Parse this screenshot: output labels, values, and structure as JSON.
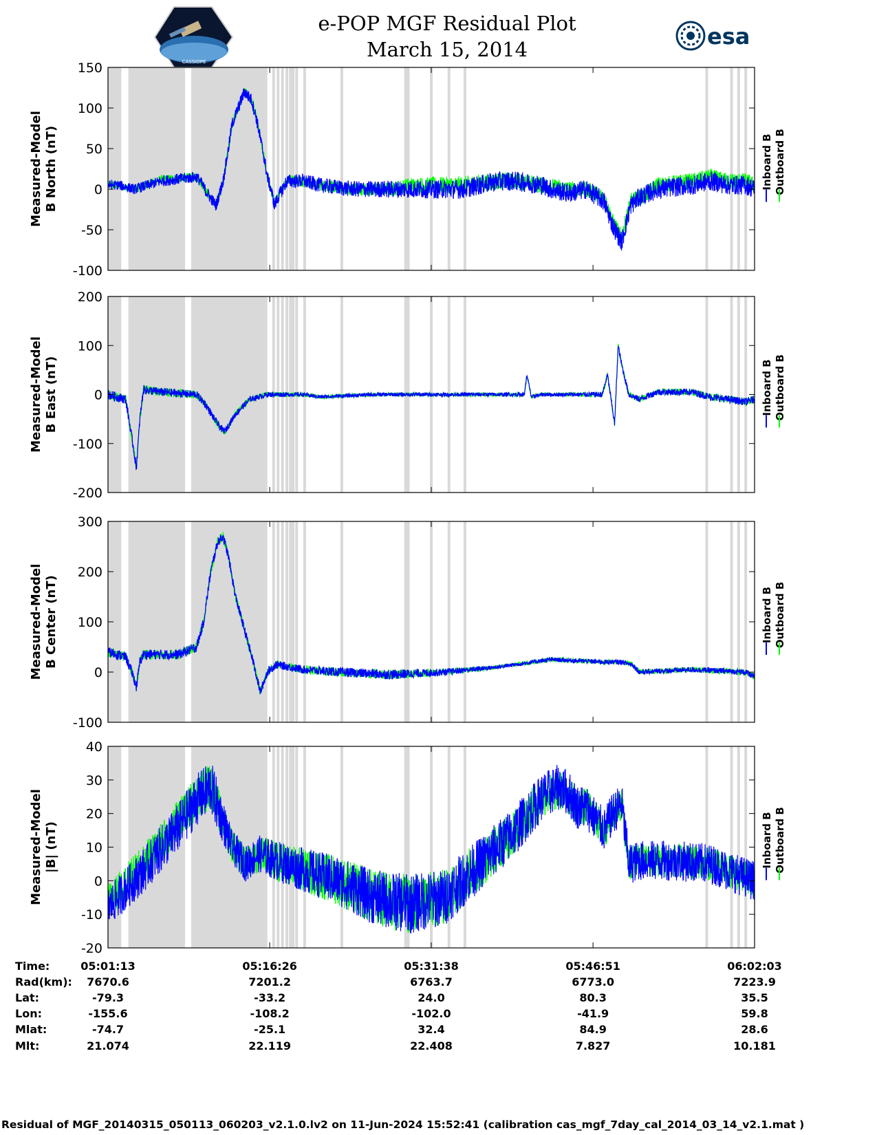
{
  "title": {
    "line1": "e-POP MGF Residual Plot",
    "line2": "March 15, 2014"
  },
  "logos": {
    "left": "cassiope-mission-patch",
    "left_text": "CASSIOPE",
    "right": "esa-logo",
    "right_text": "esa"
  },
  "colors": {
    "inboard": "#0000ff",
    "outboard": "#00ff00",
    "shade": "#d9d9d9"
  },
  "legend": {
    "inboard": "Inboard B",
    "outboard": "Outboard B"
  },
  "time_axis": {
    "start_sec": 0,
    "end_sec": 3650,
    "tick_sec": [
      0,
      913,
      1825,
      2738,
      3650
    ]
  },
  "shaded_regions_sec": [
    [
      0,
      75
    ],
    [
      115,
      435
    ],
    [
      470,
      900
    ]
  ],
  "gap_lines_sec": [
    935,
    960,
    985,
    1010,
    1030,
    1045,
    1065,
    1110,
    1320,
    1680,
    1695,
    1825,
    1925,
    2015,
    3380,
    3520,
    3560,
    3600
  ],
  "chart_data": [
    {
      "type": "line",
      "name": "north",
      "ylabel": [
        "Measured-Model",
        "B North (nT)"
      ],
      "ylim": [
        -100,
        150
      ],
      "yticks": [
        "150",
        "100",
        "50",
        "0",
        "-50",
        "-100"
      ],
      "series": [
        {
          "name": "Outboard B",
          "amp": [
            [
              0,
              5
            ],
            [
              900,
              6
            ],
            [
              1400,
              8
            ],
            [
              2000,
              11
            ],
            [
              2700,
              10
            ],
            [
              3100,
              10
            ],
            [
              3650,
              10
            ]
          ],
          "x": [
            0,
            60,
            150,
            300,
            500,
            520,
            560,
            610,
            650,
            680,
            700,
            770,
            810,
            840,
            880,
            900,
            920,
            940,
            960,
            1010,
            1100,
            1200,
            1300,
            1400,
            1500,
            1600,
            1700,
            1800,
            2000,
            2200,
            2300,
            2450,
            2500,
            2600,
            2700,
            2800,
            2850,
            2900,
            2950,
            3000,
            3050,
            3100,
            3300,
            3400,
            3500,
            3600,
            3650
          ],
          "y": [
            5,
            5,
            0,
            12,
            15,
            10,
            -5,
            -20,
            10,
            50,
            80,
            120,
            110,
            85,
            40,
            15,
            0,
            -18,
            -10,
            12,
            10,
            5,
            2,
            0,
            0,
            0,
            5,
            5,
            5,
            10,
            10,
            5,
            3,
            0,
            0,
            -10,
            -40,
            -60,
            -15,
            -10,
            -5,
            5,
            10,
            15,
            10,
            10,
            5
          ]
        },
        {
          "name": "Inboard B",
          "amp": [
            [
              0,
              6
            ],
            [
              900,
              8
            ],
            [
              1400,
              10
            ],
            [
              2000,
              12
            ],
            [
              2700,
              12
            ],
            [
              3100,
              12
            ],
            [
              3650,
              12
            ]
          ],
          "x": [
            0,
            60,
            150,
            300,
            500,
            520,
            560,
            610,
            650,
            680,
            700,
            770,
            810,
            840,
            880,
            900,
            920,
            940,
            960,
            1010,
            1100,
            1200,
            1300,
            1400,
            1500,
            1600,
            1700,
            1800,
            2000,
            2200,
            2300,
            2450,
            2500,
            2600,
            2700,
            2800,
            2850,
            2900,
            2950,
            3000,
            3050,
            3100,
            3300,
            3400,
            3500,
            3600,
            3650
          ],
          "y": [
            5,
            5,
            0,
            10,
            15,
            10,
            -5,
            -20,
            10,
            50,
            80,
            120,
            110,
            85,
            40,
            15,
            0,
            -20,
            -10,
            10,
            10,
            5,
            2,
            0,
            0,
            0,
            0,
            0,
            0,
            10,
            10,
            5,
            0,
            -5,
            0,
            -15,
            -45,
            -65,
            -20,
            -10,
            -5,
            0,
            5,
            10,
            5,
            5,
            0
          ]
        }
      ]
    },
    {
      "type": "line",
      "name": "east",
      "ylabel": [
        "Measured-Model",
        "B East (nT)"
      ],
      "ylim": [
        -200,
        200
      ],
      "yticks": [
        "200",
        "100",
        "0",
        "-100",
        "-200"
      ],
      "series": [
        {
          "name": "Outboard B",
          "amp": [
            [
              0,
              10
            ],
            [
              500,
              8
            ],
            [
              1100,
              4
            ],
            [
              2600,
              4
            ],
            [
              2800,
              6
            ],
            [
              3650,
              8
            ]
          ],
          "x": [
            0,
            100,
            140,
            160,
            180,
            200,
            300,
            500,
            550,
            600,
            640,
            660,
            720,
            800,
            900,
            1100,
            1200,
            1500,
            1800,
            2100,
            2350,
            2365,
            2390,
            2450,
            2700,
            2790,
            2820,
            2860,
            2880,
            2900,
            2940,
            3000,
            3100,
            3300,
            3400,
            3500,
            3600,
            3650
          ],
          "y": [
            0,
            -10,
            -100,
            -150,
            -50,
            10,
            5,
            0,
            -20,
            -50,
            -70,
            -75,
            -40,
            -10,
            0,
            0,
            -5,
            0,
            0,
            0,
            0,
            40,
            -5,
            0,
            0,
            0,
            40,
            -60,
            100,
            60,
            0,
            -10,
            5,
            5,
            -5,
            -10,
            -15,
            -10
          ]
        },
        {
          "name": "Inboard B",
          "amp": [
            [
              0,
              10
            ],
            [
              500,
              8
            ],
            [
              1100,
              4
            ],
            [
              2600,
              4
            ],
            [
              2800,
              6
            ],
            [
              3650,
              8
            ]
          ],
          "x": [
            0,
            100,
            140,
            160,
            180,
            200,
            300,
            500,
            550,
            600,
            640,
            660,
            720,
            800,
            900,
            1100,
            1200,
            1500,
            1800,
            2100,
            2350,
            2365,
            2390,
            2450,
            2700,
            2790,
            2820,
            2860,
            2880,
            2900,
            2940,
            3000,
            3100,
            3300,
            3400,
            3500,
            3600,
            3650
          ],
          "y": [
            0,
            -10,
            -100,
            -150,
            -50,
            10,
            5,
            0,
            -20,
            -50,
            -70,
            -75,
            -40,
            -10,
            0,
            0,
            -5,
            0,
            0,
            0,
            0,
            40,
            -5,
            0,
            0,
            0,
            40,
            -60,
            100,
            60,
            0,
            -10,
            5,
            5,
            -5,
            -10,
            -15,
            -10
          ]
        }
      ]
    },
    {
      "type": "line",
      "name": "center",
      "ylabel": [
        "Measured-Model",
        "B Center (nT)"
      ],
      "ylim": [
        -100,
        300
      ],
      "yticks": [
        "300",
        "200",
        "100",
        "0",
        "-100"
      ],
      "series": [
        {
          "name": "Outboard B",
          "amp": [
            [
              0,
              10
            ],
            [
              500,
              10
            ],
            [
              1000,
              8
            ],
            [
              1600,
              10
            ],
            [
              2200,
              4
            ],
            [
              2900,
              5
            ],
            [
              3650,
              6
            ]
          ],
          "x": [
            0,
            100,
            140,
            160,
            180,
            200,
            300,
            400,
            500,
            540,
            580,
            620,
            650,
            680,
            720,
            820,
            860,
            900,
            950,
            1100,
            1300,
            1600,
            1900,
            2200,
            2500,
            2800,
            2900,
            2960,
            3000,
            3300,
            3600,
            3650
          ],
          "y": [
            40,
            30,
            -5,
            -30,
            20,
            35,
            35,
            35,
            50,
            100,
            200,
            260,
            270,
            230,
            150,
            20,
            -40,
            0,
            15,
            5,
            0,
            -5,
            0,
            10,
            25,
            20,
            20,
            15,
            0,
            5,
            0,
            -10
          ]
        },
        {
          "name": "Inboard B",
          "amp": [
            [
              0,
              10
            ],
            [
              500,
              10
            ],
            [
              1000,
              8
            ],
            [
              1600,
              10
            ],
            [
              2200,
              4
            ],
            [
              2900,
              5
            ],
            [
              3650,
              6
            ]
          ],
          "x": [
            0,
            100,
            140,
            160,
            180,
            200,
            300,
            400,
            500,
            540,
            580,
            620,
            650,
            680,
            720,
            820,
            860,
            900,
            950,
            1100,
            1300,
            1600,
            1900,
            2200,
            2500,
            2800,
            2900,
            2960,
            3000,
            3300,
            3600,
            3650
          ],
          "y": [
            40,
            30,
            -5,
            -30,
            20,
            35,
            35,
            35,
            50,
            100,
            200,
            260,
            270,
            230,
            150,
            20,
            -40,
            0,
            15,
            5,
            0,
            -5,
            0,
            10,
            25,
            20,
            20,
            15,
            0,
            5,
            0,
            -10
          ]
        }
      ]
    },
    {
      "type": "line",
      "name": "magnitude",
      "ylabel": [
        "Measured-Model",
        "|B| (nT)"
      ],
      "ylim": [
        -20,
        40
      ],
      "yticks": [
        "40",
        "30",
        "20",
        "10",
        "0",
        "-10",
        "-20"
      ],
      "series": [
        {
          "name": "Outboard B",
          "amp": [
            [
              0,
              5
            ],
            [
              600,
              7
            ],
            [
              700,
              5
            ],
            [
              1700,
              9
            ],
            [
              2500,
              6
            ],
            [
              3000,
              5
            ],
            [
              3650,
              5
            ]
          ],
          "x": [
            0,
            200,
            400,
            500,
            580,
            620,
            700,
            780,
            850,
            1000,
            1300,
            1500,
            1700,
            1900,
            2100,
            2300,
            2450,
            2550,
            2600,
            2650,
            2700,
            2800,
            2850,
            2900,
            2940,
            3000,
            3200,
            3400,
            3650
          ],
          "y": [
            -6,
            5,
            18,
            25,
            28,
            22,
            10,
            5,
            8,
            5,
            0,
            -5,
            -7,
            -5,
            5,
            15,
            25,
            27,
            25,
            22,
            22,
            15,
            20,
            23,
            5,
            6,
            6,
            5,
            0
          ]
        },
        {
          "name": "Inboard B",
          "amp": [
            [
              0,
              6
            ],
            [
              600,
              8
            ],
            [
              700,
              5
            ],
            [
              1700,
              9
            ],
            [
              2500,
              7
            ],
            [
              3000,
              6
            ],
            [
              3650,
              6
            ]
          ],
          "x": [
            0,
            200,
            400,
            500,
            580,
            620,
            700,
            780,
            850,
            1000,
            1300,
            1500,
            1700,
            1900,
            2100,
            2300,
            2450,
            2550,
            2600,
            2650,
            2700,
            2800,
            2850,
            2900,
            2940,
            3000,
            3200,
            3400,
            3650
          ],
          "y": [
            -8,
            3,
            16,
            24,
            28,
            22,
            10,
            5,
            8,
            5,
            0,
            -5,
            -7,
            -5,
            5,
            15,
            25,
            28,
            26,
            22,
            22,
            15,
            20,
            23,
            5,
            6,
            6,
            5,
            0
          ]
        }
      ]
    }
  ],
  "info_table": {
    "labels": [
      "Time:",
      "Rad(km):",
      "Lat:",
      "Lon:",
      "Mlat:",
      "Mlt:"
    ],
    "columns": [
      [
        "05:01:13",
        "7670.6",
        "-79.3",
        "-155.6",
        "-74.7",
        "21.074"
      ],
      [
        "05:16:26",
        "7201.2",
        "-33.2",
        "-108.2",
        "-25.1",
        "22.119"
      ],
      [
        "05:31:38",
        "6763.7",
        "24.0",
        "-102.0",
        "32.4",
        "22.408"
      ],
      [
        "05:46:51",
        "6773.0",
        "80.3",
        "-41.9",
        "84.9",
        "7.827"
      ],
      [
        "06:02:03",
        "7223.9",
        "35.5",
        "59.8",
        "28.6",
        "10.181"
      ]
    ]
  },
  "footer": "Residual of MGF_20140315_050113_060203_v2.1.0.lv2 on 11-Jun-2024 15:52:41 (calibration cas_mgf_7day_cal_2014_03_14_v2.1.mat )"
}
